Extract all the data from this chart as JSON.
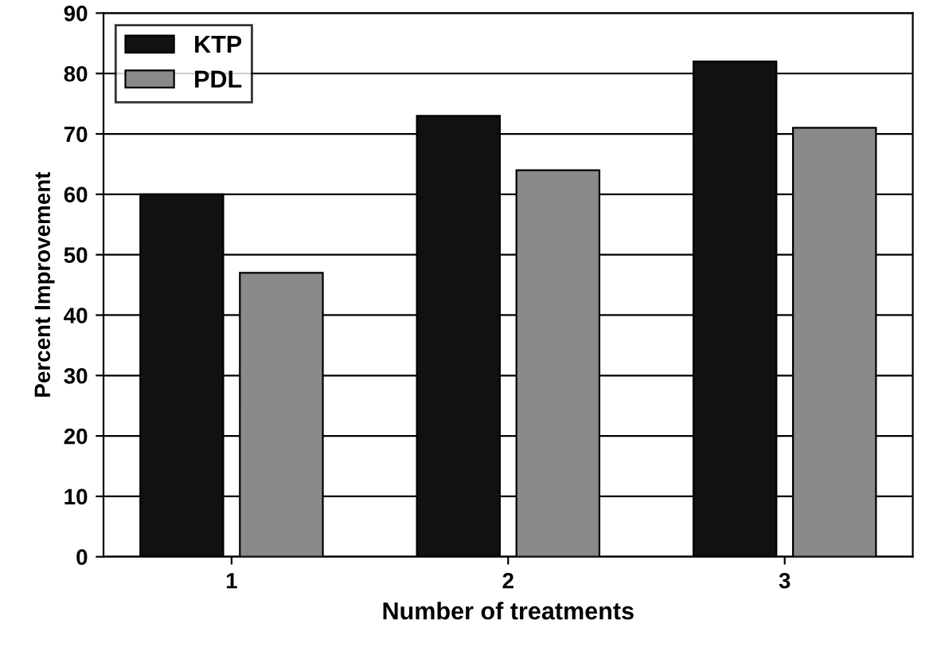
{
  "chart_data": {
    "type": "bar",
    "xlabel": "Number of treatments",
    "ylabel": "Percent Improvement",
    "categories": [
      "1",
      "2",
      "3"
    ],
    "series": [
      {
        "name": "KTP",
        "color": "#111111",
        "values": [
          60,
          73,
          82
        ]
      },
      {
        "name": "PDL",
        "color": "#8a8a8a",
        "values": [
          47,
          64,
          71
        ]
      }
    ],
    "ylim": [
      0,
      90
    ],
    "yticks": [
      0,
      10,
      20,
      30,
      40,
      50,
      60,
      70,
      80,
      90
    ],
    "grid": "y",
    "legend": "top left"
  }
}
